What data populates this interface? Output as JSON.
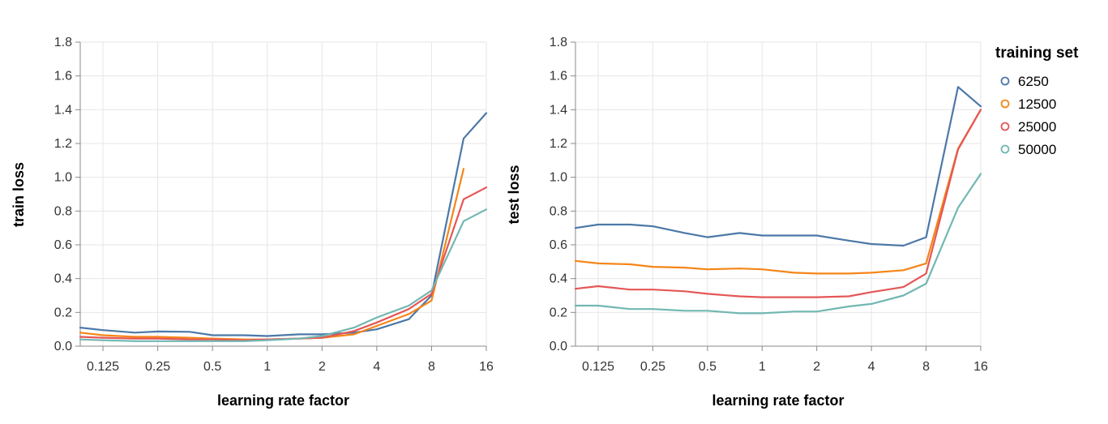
{
  "colors": {
    "grid": "#e6e6e6",
    "axis": "#888888",
    "series": [
      "#4c78a8",
      "#f58518",
      "#e45756",
      "#72b7b2"
    ]
  },
  "legend": {
    "title": "training set",
    "placement": "top-right"
  },
  "chart_data": [
    {
      "type": "line",
      "xlabel": "learning rate factor",
      "ylabel": "train loss",
      "xscale": "log2",
      "xlim": [
        0.09375,
        16
      ],
      "ylim": [
        0,
        1.8
      ],
      "grid": true,
      "xticks": [
        0.125,
        0.25,
        0.5,
        1,
        2,
        4,
        8,
        16
      ],
      "xtick_labels": [
        "0.125",
        "0.25",
        "0.5",
        "1",
        "2",
        "4",
        "8",
        "16"
      ],
      "yticks": [
        0,
        0.2,
        0.4,
        0.6,
        0.8,
        1.0,
        1.2,
        1.4,
        1.6,
        1.8
      ],
      "ytick_labels": [
        "0.0",
        "0.2",
        "0.4",
        "0.6",
        "0.8",
        "1.0",
        "1.2",
        "1.4",
        "1.6",
        "1.8"
      ],
      "x": [
        0.09375,
        0.125,
        0.1875,
        0.25,
        0.375,
        0.5,
        0.75,
        1,
        1.5,
        2,
        3,
        4,
        6,
        8,
        12,
        16
      ],
      "series": [
        {
          "name": "6250",
          "values": [
            0.11,
            0.095,
            0.08,
            0.087,
            0.085,
            0.065,
            0.065,
            0.06,
            0.07,
            0.07,
            0.08,
            0.1,
            0.16,
            0.3,
            1.23,
            1.38
          ]
        },
        {
          "name": "12500",
          "values": [
            0.08,
            0.065,
            0.055,
            0.055,
            0.05,
            0.045,
            0.04,
            0.04,
            0.045,
            0.05,
            0.07,
            0.12,
            0.19,
            0.27,
            1.05,
            null
          ]
        },
        {
          "name": "25000",
          "values": [
            0.055,
            0.05,
            0.045,
            0.045,
            0.04,
            0.04,
            0.035,
            0.04,
            0.045,
            0.05,
            0.09,
            0.14,
            0.22,
            0.31,
            0.87,
            0.94
          ]
        },
        {
          "name": "50000",
          "values": [
            0.04,
            0.035,
            0.03,
            0.03,
            0.03,
            0.03,
            0.03,
            0.035,
            0.045,
            0.06,
            0.11,
            0.17,
            0.24,
            0.33,
            0.74,
            0.81
          ]
        }
      ]
    },
    {
      "type": "line",
      "xlabel": "learning rate factor",
      "ylabel": "test loss",
      "xscale": "log2",
      "xlim": [
        0.09375,
        16
      ],
      "ylim": [
        0,
        1.8
      ],
      "grid": true,
      "xticks": [
        0.125,
        0.25,
        0.5,
        1,
        2,
        4,
        8,
        16
      ],
      "xtick_labels": [
        "0.125",
        "0.25",
        "0.5",
        "1",
        "2",
        "4",
        "8",
        "16"
      ],
      "yticks": [
        0,
        0.2,
        0.4,
        0.6,
        0.8,
        1.0,
        1.2,
        1.4,
        1.6,
        1.8
      ],
      "ytick_labels": [
        "0.0",
        "0.2",
        "0.4",
        "0.6",
        "0.8",
        "1.0",
        "1.2",
        "1.4",
        "1.6",
        "1.8"
      ],
      "x": [
        0.09375,
        0.125,
        0.1875,
        0.25,
        0.375,
        0.5,
        0.75,
        1,
        1.5,
        2,
        3,
        4,
        6,
        8,
        12,
        16
      ],
      "series": [
        {
          "name": "6250",
          "values": [
            0.7,
            0.72,
            0.72,
            0.71,
            0.67,
            0.645,
            0.67,
            0.655,
            0.655,
            0.655,
            0.625,
            0.605,
            0.595,
            0.645,
            1.535,
            1.42
          ]
        },
        {
          "name": "12500",
          "values": [
            0.505,
            0.49,
            0.485,
            0.47,
            0.465,
            0.455,
            0.46,
            0.455,
            0.435,
            0.43,
            0.43,
            0.435,
            0.45,
            0.49,
            1.17,
            1.4
          ]
        },
        {
          "name": "25000",
          "values": [
            0.34,
            0.355,
            0.335,
            0.335,
            0.325,
            0.31,
            0.295,
            0.29,
            0.29,
            0.29,
            0.295,
            0.32,
            0.35,
            0.43,
            1.165,
            1.4
          ]
        },
        {
          "name": "50000",
          "values": [
            0.24,
            0.24,
            0.22,
            0.22,
            0.21,
            0.21,
            0.195,
            0.195,
            0.205,
            0.205,
            0.235,
            0.25,
            0.3,
            0.37,
            0.82,
            1.02
          ]
        }
      ]
    }
  ]
}
